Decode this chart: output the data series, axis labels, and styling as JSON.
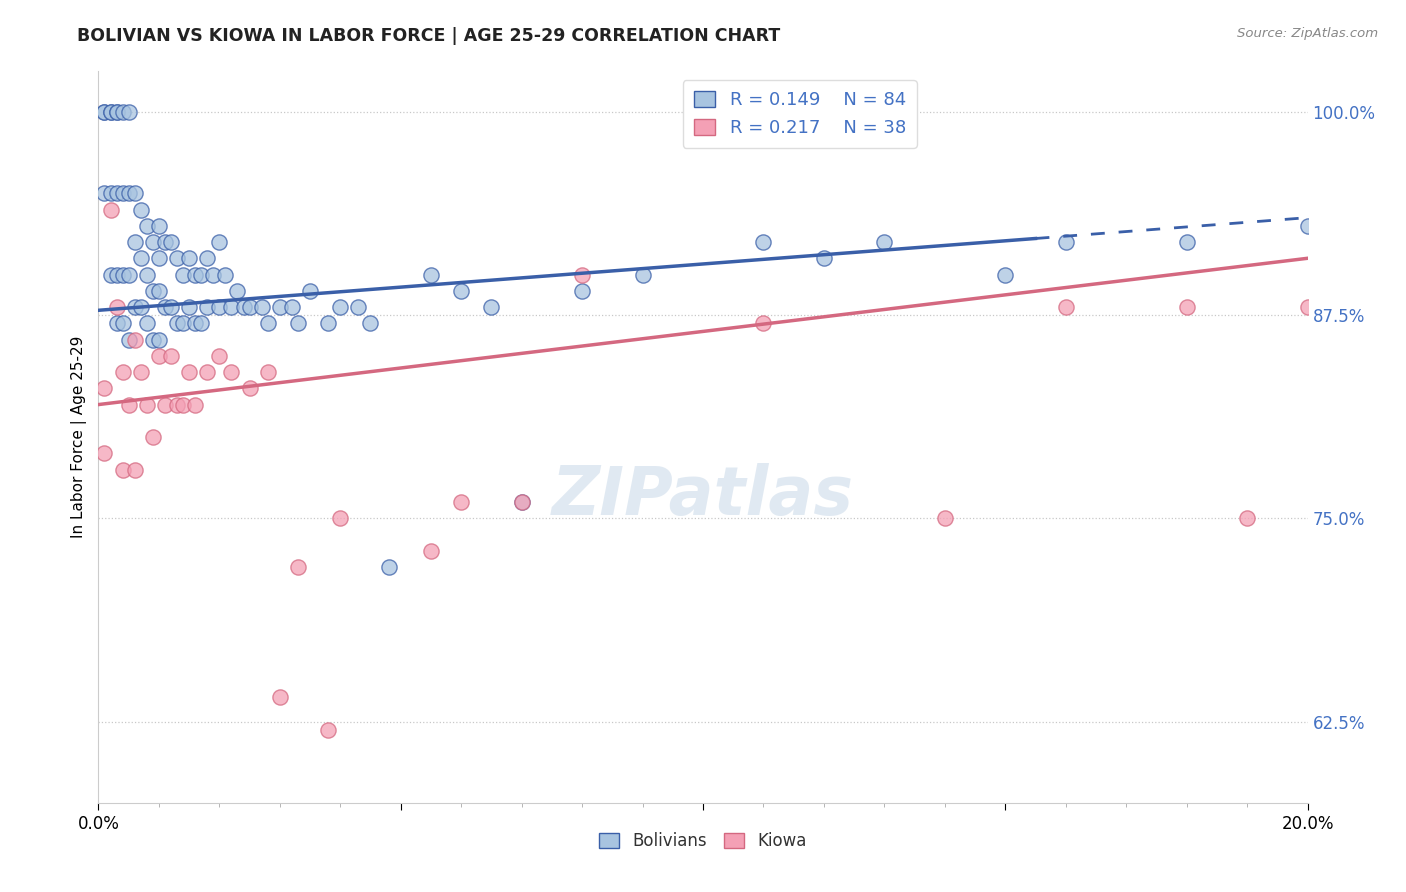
{
  "title": "BOLIVIAN VS KIOWA IN LABOR FORCE | AGE 25-29 CORRELATION CHART",
  "source": "Source: ZipAtlas.com",
  "ylabel": "In Labor Force | Age 25-29",
  "xlim": [
    0.0,
    0.2
  ],
  "ylim": [
    0.575,
    1.025
  ],
  "yticks": [
    0.625,
    0.75,
    0.875,
    1.0
  ],
  "ytick_labels": [
    "62.5%",
    "75.0%",
    "87.5%",
    "100.0%"
  ],
  "xticks": [
    0.0,
    0.05,
    0.1,
    0.15,
    0.2
  ],
  "xtick_labels": [
    "0.0%",
    "",
    "",
    "",
    "20.0%"
  ],
  "R_bolivian": 0.149,
  "N_bolivian": 84,
  "R_kiowa": 0.217,
  "N_kiowa": 38,
  "bolivian_color": "#a8c4e0",
  "kiowa_color": "#f4a0b5",
  "trend_bolivian_color": "#3a5fa8",
  "trend_kiowa_color": "#d46880",
  "legend_labels": [
    "Bolivians",
    "Kiowa"
  ],
  "watermark": "ZIPatlas",
  "trend_bol_x0": 0.0,
  "trend_bol_y0": 0.878,
  "trend_bol_x1": 0.2,
  "trend_bol_y1": 0.935,
  "trend_bol_dash_start": 0.155,
  "trend_kiowa_x0": 0.0,
  "trend_kiowa_y0": 0.82,
  "trend_kiowa_x1": 0.2,
  "trend_kiowa_y1": 0.91,
  "bolivian_x": [
    0.001,
    0.001,
    0.001,
    0.002,
    0.002,
    0.002,
    0.002,
    0.003,
    0.003,
    0.003,
    0.003,
    0.003,
    0.004,
    0.004,
    0.004,
    0.004,
    0.005,
    0.005,
    0.005,
    0.005,
    0.006,
    0.006,
    0.006,
    0.007,
    0.007,
    0.007,
    0.008,
    0.008,
    0.008,
    0.009,
    0.009,
    0.009,
    0.01,
    0.01,
    0.01,
    0.01,
    0.011,
    0.011,
    0.012,
    0.012,
    0.013,
    0.013,
    0.014,
    0.014,
    0.015,
    0.015,
    0.016,
    0.016,
    0.017,
    0.017,
    0.018,
    0.018,
    0.019,
    0.02,
    0.02,
    0.021,
    0.022,
    0.023,
    0.024,
    0.025,
    0.027,
    0.028,
    0.03,
    0.032,
    0.033,
    0.035,
    0.038,
    0.04,
    0.043,
    0.045,
    0.048,
    0.055,
    0.06,
    0.065,
    0.07,
    0.08,
    0.09,
    0.11,
    0.12,
    0.13,
    0.15,
    0.16,
    0.18,
    0.2
  ],
  "bolivian_y": [
    1.0,
    1.0,
    0.95,
    1.0,
    1.0,
    0.95,
    0.9,
    1.0,
    1.0,
    0.95,
    0.9,
    0.87,
    1.0,
    0.95,
    0.9,
    0.87,
    1.0,
    0.95,
    0.9,
    0.86,
    0.95,
    0.92,
    0.88,
    0.94,
    0.91,
    0.88,
    0.93,
    0.9,
    0.87,
    0.92,
    0.89,
    0.86,
    0.93,
    0.91,
    0.89,
    0.86,
    0.92,
    0.88,
    0.92,
    0.88,
    0.91,
    0.87,
    0.9,
    0.87,
    0.91,
    0.88,
    0.9,
    0.87,
    0.9,
    0.87,
    0.91,
    0.88,
    0.9,
    0.92,
    0.88,
    0.9,
    0.88,
    0.89,
    0.88,
    0.88,
    0.88,
    0.87,
    0.88,
    0.88,
    0.87,
    0.89,
    0.87,
    0.88,
    0.88,
    0.87,
    0.72,
    0.9,
    0.89,
    0.88,
    0.76,
    0.89,
    0.9,
    0.92,
    0.91,
    0.92,
    0.9,
    0.92,
    0.92,
    0.93
  ],
  "kiowa_x": [
    0.001,
    0.001,
    0.002,
    0.003,
    0.004,
    0.004,
    0.005,
    0.006,
    0.006,
    0.007,
    0.008,
    0.009,
    0.01,
    0.011,
    0.012,
    0.013,
    0.014,
    0.015,
    0.016,
    0.018,
    0.02,
    0.022,
    0.025,
    0.028,
    0.03,
    0.033,
    0.038,
    0.04,
    0.055,
    0.06,
    0.07,
    0.08,
    0.11,
    0.14,
    0.16,
    0.18,
    0.19,
    0.2
  ],
  "kiowa_y": [
    0.83,
    0.79,
    0.94,
    0.88,
    0.84,
    0.78,
    0.82,
    0.86,
    0.78,
    0.84,
    0.82,
    0.8,
    0.85,
    0.82,
    0.85,
    0.82,
    0.82,
    0.84,
    0.82,
    0.84,
    0.85,
    0.84,
    0.83,
    0.84,
    0.64,
    0.72,
    0.62,
    0.75,
    0.73,
    0.76,
    0.76,
    0.9,
    0.87,
    0.75,
    0.88,
    0.88,
    0.75,
    0.88
  ]
}
